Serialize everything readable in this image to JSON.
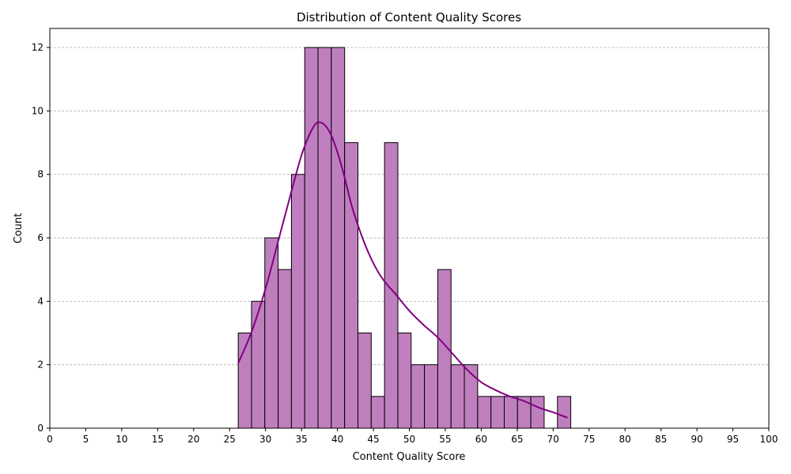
{
  "chart_data": {
    "type": "bar",
    "title": "Distribution of Content Quality Scores",
    "xlabel": "Content Quality Score",
    "ylabel": "Count",
    "xlim": [
      0,
      100
    ],
    "ylim": [
      0,
      12.6
    ],
    "x_ticks": [
      0,
      5,
      10,
      15,
      20,
      25,
      30,
      35,
      40,
      45,
      50,
      55,
      60,
      65,
      70,
      75,
      80,
      85,
      90,
      95,
      100
    ],
    "y_ticks": [
      0,
      2,
      4,
      6,
      8,
      10,
      12
    ],
    "grid": "y-dashed",
    "bins": [
      {
        "x0": 26.2,
        "x1": 28.05,
        "count": 3
      },
      {
        "x0": 28.05,
        "x1": 29.9,
        "count": 4
      },
      {
        "x0": 29.9,
        "x1": 31.75,
        "count": 6
      },
      {
        "x0": 31.75,
        "x1": 33.6,
        "count": 5
      },
      {
        "x0": 33.6,
        "x1": 35.45,
        "count": 8
      },
      {
        "x0": 35.45,
        "x1": 37.3,
        "count": 12
      },
      {
        "x0": 37.3,
        "x1": 39.15,
        "count": 12
      },
      {
        "x0": 39.15,
        "x1": 41.0,
        "count": 12
      },
      {
        "x0": 41.0,
        "x1": 42.85,
        "count": 9
      },
      {
        "x0": 42.85,
        "x1": 44.7,
        "count": 3
      },
      {
        "x0": 44.7,
        "x1": 46.55,
        "count": 1
      },
      {
        "x0": 46.55,
        "x1": 48.4,
        "count": 9
      },
      {
        "x0": 48.4,
        "x1": 50.25,
        "count": 3
      },
      {
        "x0": 50.25,
        "x1": 52.1,
        "count": 2
      },
      {
        "x0": 52.1,
        "x1": 53.95,
        "count": 2
      },
      {
        "x0": 53.95,
        "x1": 55.8,
        "count": 5
      },
      {
        "x0": 55.8,
        "x1": 57.65,
        "count": 2
      },
      {
        "x0": 57.65,
        "x1": 59.5,
        "count": 2
      },
      {
        "x0": 59.5,
        "x1": 61.35,
        "count": 1
      },
      {
        "x0": 61.35,
        "x1": 63.2,
        "count": 1
      },
      {
        "x0": 63.2,
        "x1": 65.05,
        "count": 1
      },
      {
        "x0": 65.05,
        "x1": 66.9,
        "count": 1
      },
      {
        "x0": 66.9,
        "x1": 68.75,
        "count": 1
      },
      {
        "x0": 68.75,
        "x1": 70.6,
        "count": 0
      },
      {
        "x0": 70.6,
        "x1": 72.45,
        "count": 1
      }
    ],
    "kde": {
      "x": [
        26.2,
        28,
        30,
        32,
        34,
        35,
        36,
        37,
        38,
        39,
        40,
        41,
        42,
        43,
        44,
        45,
        46,
        47,
        48,
        50,
        52,
        54,
        56,
        58,
        60,
        62,
        64,
        66,
        68,
        70,
        72
      ],
      "y": [
        2.05,
        3.0,
        4.4,
        6.1,
        7.8,
        8.6,
        9.2,
        9.6,
        9.6,
        9.3,
        8.7,
        7.9,
        7.0,
        6.3,
        5.7,
        5.2,
        4.8,
        4.5,
        4.25,
        3.7,
        3.25,
        2.85,
        2.35,
        1.85,
        1.45,
        1.2,
        1.0,
        0.85,
        0.65,
        0.5,
        0.33
      ]
    },
    "colors": {
      "bar_fill": "#bf7fbf",
      "bar_edge": "#000000",
      "kde_line": "#800080",
      "grid": "#b0b0b0"
    }
  }
}
